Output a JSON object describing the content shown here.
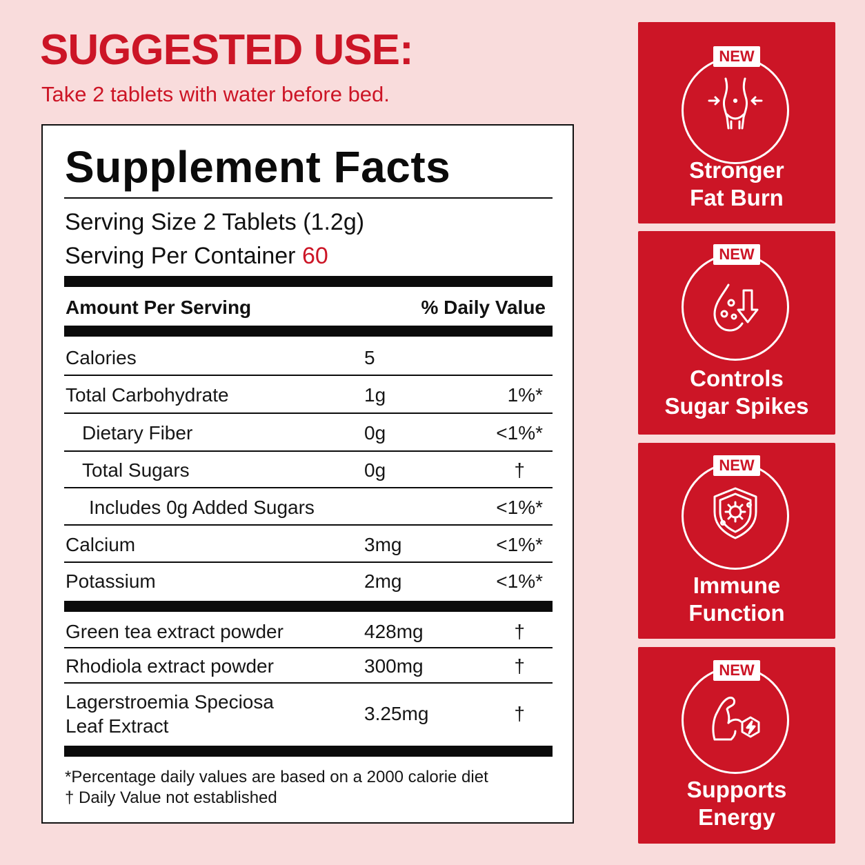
{
  "header": {
    "title": "SUGGESTED USE:",
    "subtitle": "Take 2 tablets with water before bed."
  },
  "facts": {
    "title": "Supplement Facts",
    "serving_size": "Serving Size 2 Tablets (1.2g)",
    "servings_label": "Serving Per Container",
    "servings_value": "60",
    "amount_header": "Amount Per Serving",
    "dv_header": "% Daily Value",
    "nutrients": [
      {
        "name": "Calories",
        "amount": "5",
        "dv": ""
      },
      {
        "name": "Total Carbohydrate",
        "amount": "1g",
        "dv": "1%*"
      },
      {
        "name": "Dietary Fiber",
        "amount": "0g",
        "dv": "<1%*"
      },
      {
        "name": "Total Sugars",
        "amount": "0g",
        "dv": "†"
      },
      {
        "name": "Includes 0g Added Sugars",
        "amount": "",
        "dv": "<1%*"
      },
      {
        "name": "Calcium",
        "amount": "3mg",
        "dv": "<1%*"
      },
      {
        "name": "Potassium",
        "amount": "2mg",
        "dv": "<1%*"
      }
    ],
    "ingredients": [
      {
        "name": "Green tea extract powder",
        "amount": "428mg",
        "dv": "†"
      },
      {
        "name": "Rhodiola extract powder",
        "amount": "300mg",
        "dv": "†"
      },
      {
        "name_line1": "Lagerstroemia Speciosa",
        "name_line2": "Leaf Extract",
        "amount": "3.25mg",
        "dv": "†"
      }
    ],
    "footnote_1": "*Percentage daily values are based on a 2000 calorie diet",
    "footnote_2": "† Daily Value not established"
  },
  "benefits": [
    {
      "tag": "NEW",
      "line1": "Stronger",
      "line2": "Fat Burn",
      "icon": "waist-slimming-icon"
    },
    {
      "tag": "NEW",
      "line1": "Controls",
      "line2": "Sugar Spikes",
      "icon": "blood-sugar-down-icon"
    },
    {
      "tag": "NEW",
      "line1": "Immune",
      "line2": "Function",
      "icon": "immune-shield-icon"
    },
    {
      "tag": "NEW",
      "line1": "Supports",
      "line2": "Energy",
      "icon": "muscle-energy-icon"
    }
  ],
  "colors": {
    "accent": "#cc1526",
    "background": "#f9dcdc",
    "panel": "#ffffff"
  }
}
